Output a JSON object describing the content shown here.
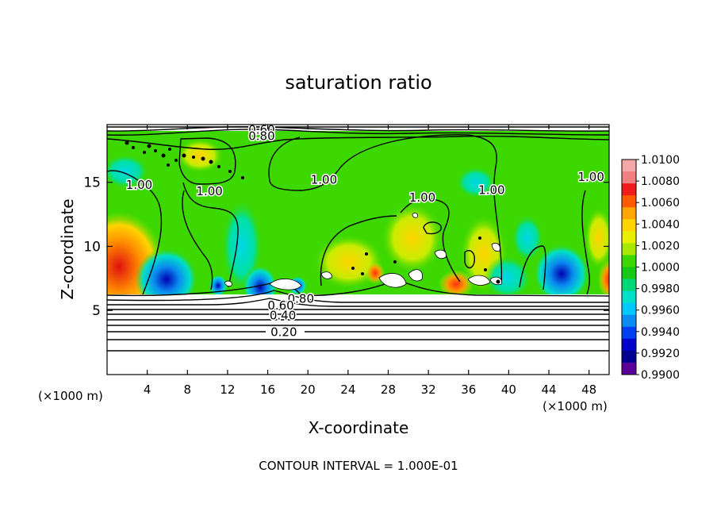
{
  "chart_data": {
    "type": "heatmap",
    "title": "saturation ratio",
    "xlabel": "X-coordinate",
    "ylabel": "Z-coordinate",
    "x_unit_left": "(×1000 m)",
    "x_unit_right": "(×1000 m)",
    "xlim": [
      0,
      50
    ],
    "ylim": [
      0,
      19.5
    ],
    "x_ticks": [
      4,
      8,
      12,
      16,
      20,
      24,
      28,
      32,
      36,
      40,
      44,
      48
    ],
    "y_ticks": [
      5,
      10,
      15
    ],
    "footer": "CONTOUR INTERVAL = 1.000E-01",
    "colorbar": {
      "levels": [
        "1.0100",
        "1.0080",
        "1.0060",
        "1.0040",
        "1.0020",
        "1.0000",
        "0.9980",
        "0.9960",
        "0.9940",
        "0.9920",
        "0.9900"
      ],
      "colors": [
        "#f4a8a8",
        "#f08080",
        "#ee1c1c",
        "#ff5a00",
        "#ffa500",
        "#ffd400",
        "#e8f000",
        "#a8e800",
        "#3cd800",
        "#14c814",
        "#00d878",
        "#00e0c8",
        "#00c8ff",
        "#0a8cf0",
        "#0040f0",
        "#0000c8",
        "#000090",
        "#5a0096"
      ]
    },
    "contour_labels": [
      {
        "text": "0.60",
        "x": 15.4,
        "z": 19.1
      },
      {
        "text": "0.80",
        "x": 15.4,
        "z": 18.6
      },
      {
        "text": "1.00",
        "x": 3.2,
        "z": 14.8
      },
      {
        "text": "1.00",
        "x": 10.2,
        "z": 14.3
      },
      {
        "text": "1.00",
        "x": 21.6,
        "z": 15.2
      },
      {
        "text": "1.00",
        "x": 31.4,
        "z": 13.8
      },
      {
        "text": "1.00",
        "x": 38.3,
        "z": 14.4
      },
      {
        "text": "1.00",
        "x": 48.2,
        "z": 15.4
      },
      {
        "text": "0.80",
        "x": 19.3,
        "z": 5.9
      },
      {
        "text": "0.60",
        "x": 17.3,
        "z": 5.4
      },
      {
        "text": "0.40",
        "x": 17.5,
        "z": 4.6
      },
      {
        "text": "0.20",
        "x": 17.6,
        "z": 3.3
      }
    ]
  }
}
